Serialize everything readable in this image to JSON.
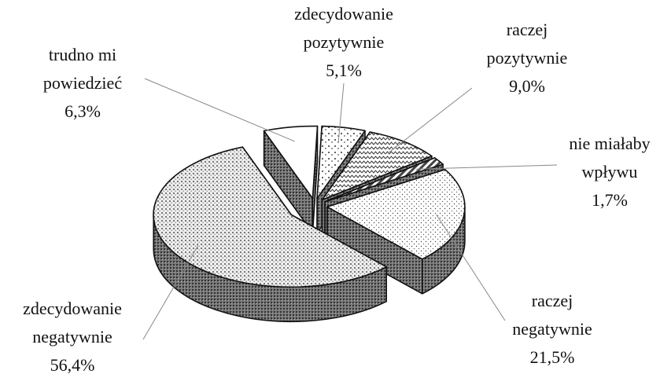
{
  "chart_data": {
    "type": "pie",
    "categories": [
      "zdecydowanie pozytywnie",
      "raczej pozytywnie",
      "nie miałaby wpływu",
      "raczej negatywnie",
      "zdecydowanie negatywnie",
      "trudno mi powiedzieć"
    ],
    "values": [
      5.1,
      9.0,
      1.7,
      21.5,
      56.4,
      6.3
    ],
    "value_labels": [
      "5,1%",
      "9,0%",
      "1,7%",
      "21,5%",
      "56,4%",
      "6,3%"
    ]
  }
}
